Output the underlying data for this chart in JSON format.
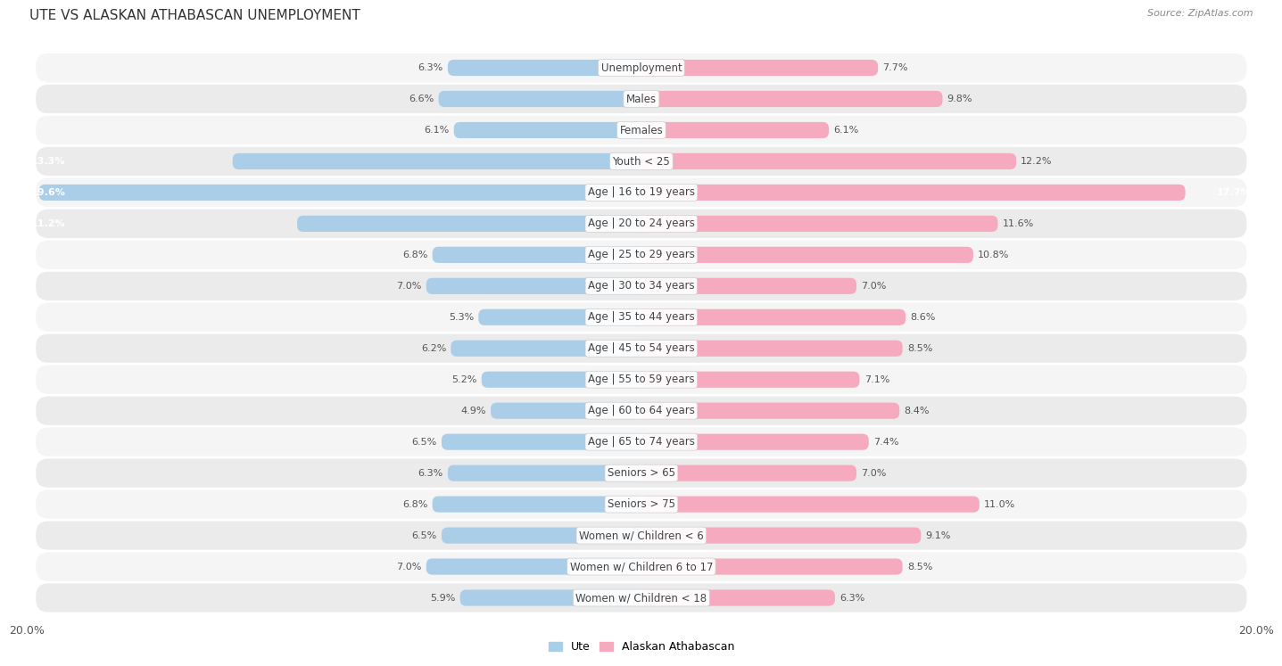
{
  "title": "Ute vs Alaskan Athabascan Unemployment",
  "title_display": "UTE VS ALASKAN ATHABASCAN UNEMPLOYMENT",
  "source": "Source: ZipAtlas.com",
  "categories": [
    "Unemployment",
    "Males",
    "Females",
    "Youth < 25",
    "Age | 16 to 19 years",
    "Age | 20 to 24 years",
    "Age | 25 to 29 years",
    "Age | 30 to 34 years",
    "Age | 35 to 44 years",
    "Age | 45 to 54 years",
    "Age | 55 to 59 years",
    "Age | 60 to 64 years",
    "Age | 65 to 74 years",
    "Seniors > 65",
    "Seniors > 75",
    "Women w/ Children < 6",
    "Women w/ Children 6 to 17",
    "Women w/ Children < 18"
  ],
  "ute_values": [
    6.3,
    6.6,
    6.1,
    13.3,
    19.6,
    11.2,
    6.8,
    7.0,
    5.3,
    6.2,
    5.2,
    4.9,
    6.5,
    6.3,
    6.8,
    6.5,
    7.0,
    5.9
  ],
  "alaskan_values": [
    7.7,
    9.8,
    6.1,
    12.2,
    17.7,
    11.6,
    10.8,
    7.0,
    8.6,
    8.5,
    7.1,
    8.4,
    7.4,
    7.0,
    11.0,
    9.1,
    8.5,
    6.3
  ],
  "ute_color": "#7aafd4",
  "alaskan_color": "#f07aa0",
  "ute_color_light": "#aacde8",
  "alaskan_color_light": "#f5aac0",
  "ute_label": "Ute",
  "alaskan_label": "Alaskan Athabascan",
  "max_val": 20.0,
  "bg_color": "#ffffff",
  "row_bg_odd": "#f5f5f5",
  "row_bg_even": "#ebebeb",
  "title_fontsize": 11,
  "label_fontsize": 8.5,
  "value_fontsize": 8,
  "bar_height": 0.52
}
